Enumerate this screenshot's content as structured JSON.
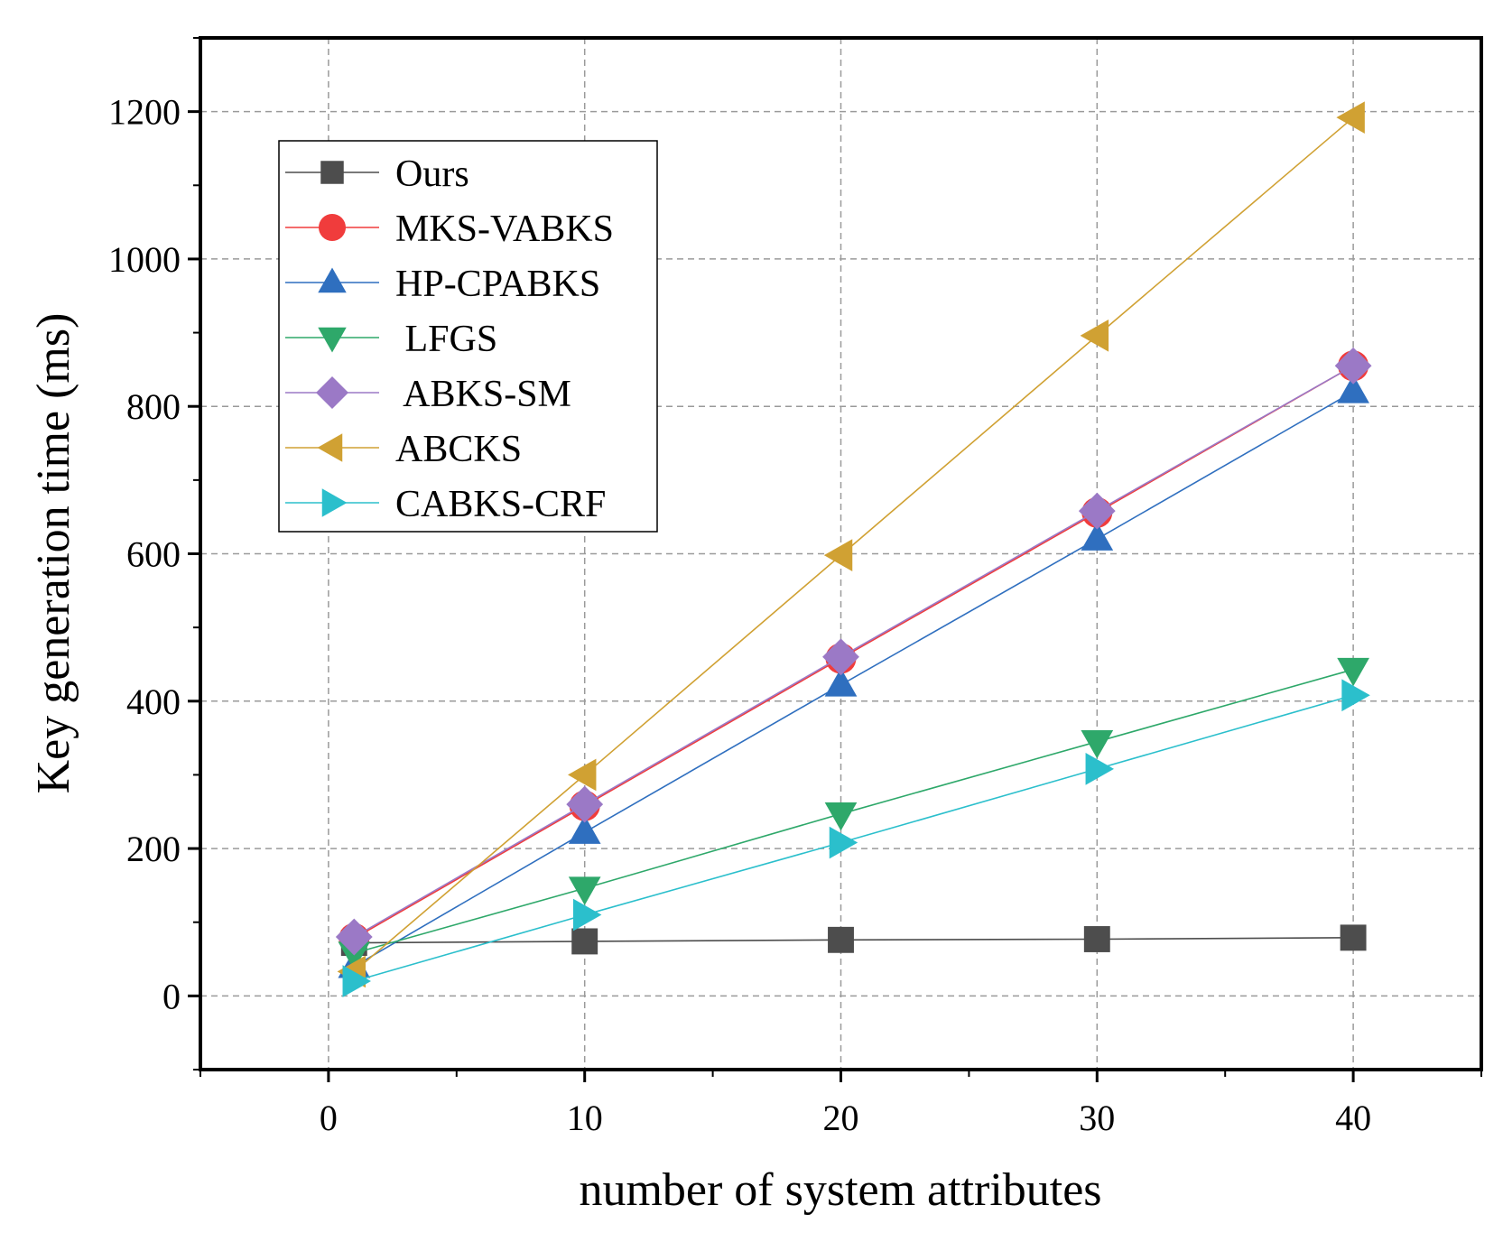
{
  "chart_data": {
    "type": "line",
    "title": "",
    "xlabel": "number of system attributes",
    "ylabel": "Key generation time (ms)",
    "xlim": [
      -5,
      45
    ],
    "ylim": [
      -100,
      1300
    ],
    "xticks": [
      0,
      10,
      20,
      30,
      40
    ],
    "yticks": [
      0,
      200,
      400,
      600,
      800,
      1000,
      1200
    ],
    "grid": true,
    "legend_position": "top-left",
    "x": [
      1,
      10,
      20,
      30,
      40
    ],
    "series": [
      {
        "name": "Ours",
        "color": "#4d4d4d",
        "marker": "square",
        "values": [
          72,
          74,
          76,
          77,
          79
        ]
      },
      {
        "name": "MKS-VABKS",
        "color": "#f03c3c",
        "marker": "circle",
        "values": [
          78,
          258,
          458,
          656,
          855
        ]
      },
      {
        "name": "HP-CPABKS",
        "color": "#2f6fbf",
        "marker": "triangle-up",
        "values": [
          40,
          222,
          422,
          620,
          820
        ]
      },
      {
        "name": " LFGS",
        "color": "#2ea86a",
        "marker": "triangle-down",
        "values": [
          58,
          146,
          247,
          345,
          443
        ]
      },
      {
        "name": " ABKS-SM",
        "color": "#9b79c6",
        "marker": "diamond",
        "values": [
          80,
          260,
          460,
          658,
          855
        ]
      },
      {
        "name": "ABCKS",
        "color": "#d0a133",
        "marker": "triangle-left",
        "values": [
          33,
          300,
          598,
          896,
          1192
        ]
      },
      {
        "name": "CABKS-CRF",
        "color": "#2bbfcc",
        "marker": "triangle-right",
        "values": [
          20,
          110,
          208,
          308,
          408
        ]
      }
    ]
  }
}
